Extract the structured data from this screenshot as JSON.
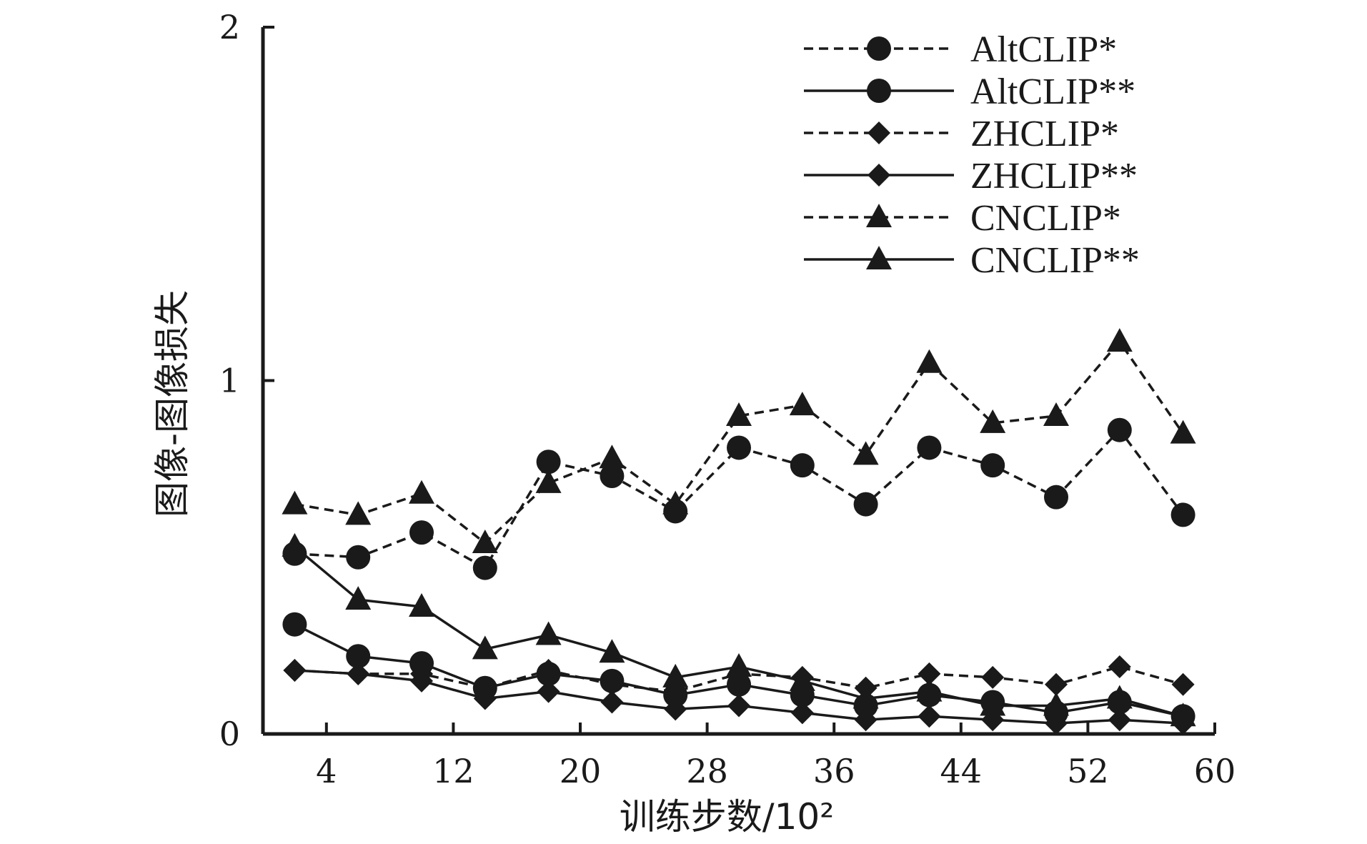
{
  "chart_data": {
    "type": "line",
    "xlabel": "训练步数/10²",
    "ylabel": "图像-图像损失",
    "x_ticks": [
      "4",
      "12",
      "20",
      "28",
      "36",
      "44",
      "52",
      "60"
    ],
    "y_ticks": [
      "0",
      "1",
      "2"
    ],
    "xlim": [
      0,
      60
    ],
    "ylim": [
      0,
      2
    ],
    "x": [
      2,
      6,
      10,
      14,
      18,
      22,
      26,
      30,
      34,
      38,
      42,
      46,
      50,
      54,
      58
    ],
    "legend_position": "top-right",
    "grid": false,
    "series": [
      {
        "name": "AltCLIP*",
        "marker": "circle",
        "dash": true,
        "values": [
          0.51,
          0.5,
          0.57,
          0.47,
          0.77,
          0.73,
          0.63,
          0.81,
          0.76,
          0.65,
          0.81,
          0.76,
          0.67,
          0.86,
          0.62
        ]
      },
      {
        "name": "AltCLIP**",
        "marker": "circle",
        "dash": false,
        "values": [
          0.31,
          0.22,
          0.2,
          0.13,
          0.17,
          0.15,
          0.11,
          0.14,
          0.11,
          0.08,
          0.11,
          0.09,
          0.06,
          0.09,
          0.05
        ]
      },
      {
        "name": "ZHCLIP*",
        "marker": "diamond",
        "dash": true,
        "values": [
          0.18,
          0.17,
          0.17,
          0.13,
          0.18,
          0.14,
          0.12,
          0.17,
          0.16,
          0.13,
          0.17,
          0.16,
          0.14,
          0.19,
          0.14
        ]
      },
      {
        "name": "ZHCLIP**",
        "marker": "diamond",
        "dash": false,
        "values": [
          0.18,
          0.17,
          0.15,
          0.1,
          0.12,
          0.09,
          0.07,
          0.08,
          0.06,
          0.04,
          0.05,
          0.04,
          0.03,
          0.04,
          0.03
        ]
      },
      {
        "name": "CNCLIP*",
        "marker": "triangle",
        "dash": true,
        "values": [
          0.65,
          0.62,
          0.68,
          0.54,
          0.71,
          0.78,
          0.65,
          0.9,
          0.93,
          0.79,
          1.05,
          0.88,
          0.9,
          1.11,
          0.85
        ]
      },
      {
        "name": "CNCLIP**",
        "marker": "triangle",
        "dash": false,
        "values": [
          0.53,
          0.38,
          0.36,
          0.24,
          0.28,
          0.23,
          0.16,
          0.19,
          0.15,
          0.1,
          0.12,
          0.08,
          0.08,
          0.1,
          0.05
        ]
      }
    ]
  },
  "colors": {
    "ink": "#1a1a1a",
    "background": "#ffffff"
  }
}
